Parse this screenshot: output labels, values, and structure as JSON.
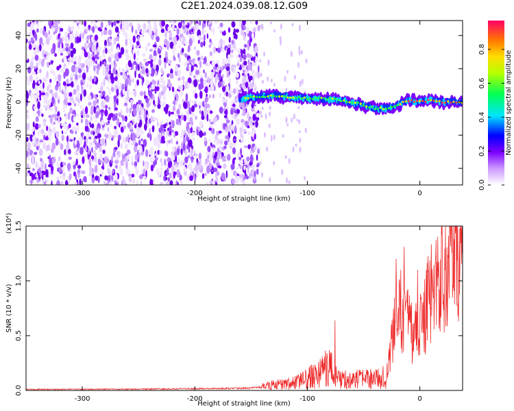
{
  "title": "C2E1.2024.039.08.12.G09",
  "colors": {
    "noise_purple": "#7b00ff",
    "snr_line": "#ee2b2b",
    "axis": "#000000"
  },
  "chart_data": [
    {
      "type": "heatmap",
      "name": "spectrogram",
      "xlabel": "Height of straight line (km)",
      "ylabel": "Frequency (Hz)",
      "xlim": [
        -350,
        38
      ],
      "ylim": [
        -50,
        49
      ],
      "xticks": [
        -300,
        -200,
        -100,
        0
      ],
      "yticks": [
        -40,
        -20,
        0,
        20,
        40
      ],
      "noise_region_x": [
        -350,
        -143
      ],
      "signal_track": {
        "x": [
          -160,
          -145,
          -130,
          -115,
          -100,
          -85,
          -70,
          -55,
          -40,
          -30,
          -20,
          -10,
          0,
          10,
          20,
          38
        ],
        "freq": [
          2,
          3,
          4,
          3,
          2,
          2,
          1,
          -1,
          -4,
          -4,
          -2,
          1,
          0,
          1,
          0,
          0
        ]
      },
      "colorbar": {
        "label": "Normalized spectral amplitude",
        "ticks": [
          0.0,
          0.2,
          0.4,
          0.6,
          0.8
        ],
        "tick_labels": [
          "0.0",
          "0.2",
          "0.4",
          "0.6",
          "0.8"
        ],
        "range": [
          0,
          0.97
        ]
      }
    },
    {
      "type": "line",
      "name": "snr",
      "xlabel": "Height of straight line (km)",
      "ylabel": "SNR (10 * v/v)",
      "exponent_label": "(x10⁴)",
      "xlim": [
        -350,
        38
      ],
      "ylim": [
        0,
        1.5
      ],
      "xticks": [
        -300,
        -200,
        -100,
        0
      ],
      "yticks": [
        0.0,
        0.5,
        1.0,
        1.5
      ],
      "ytick_labels": [
        "0.0",
        "0.5",
        "1.0",
        "1.5"
      ],
      "x": [
        -350,
        -250,
        -150,
        -130,
        -110,
        -90,
        -85,
        -80,
        -75,
        -70,
        -50,
        -30,
        -25,
        -20,
        -15,
        -10,
        -5,
        0,
        5,
        10,
        20,
        30,
        38
      ],
      "y_base": [
        0.01,
        0.012,
        0.02,
        0.05,
        0.07,
        0.15,
        0.2,
        0.22,
        0.12,
        0.1,
        0.1,
        0.12,
        0.45,
        0.65,
        0.75,
        0.6,
        0.5,
        0.6,
        0.7,
        0.9,
        1.1,
        1.3,
        1.42
      ],
      "peaks": [
        [
          -75.5,
          0.64
        ],
        [
          -21,
          1.2
        ],
        [
          -14,
          1.31
        ],
        [
          -2,
          1.1
        ],
        [
          35,
          1.48
        ]
      ]
    }
  ]
}
